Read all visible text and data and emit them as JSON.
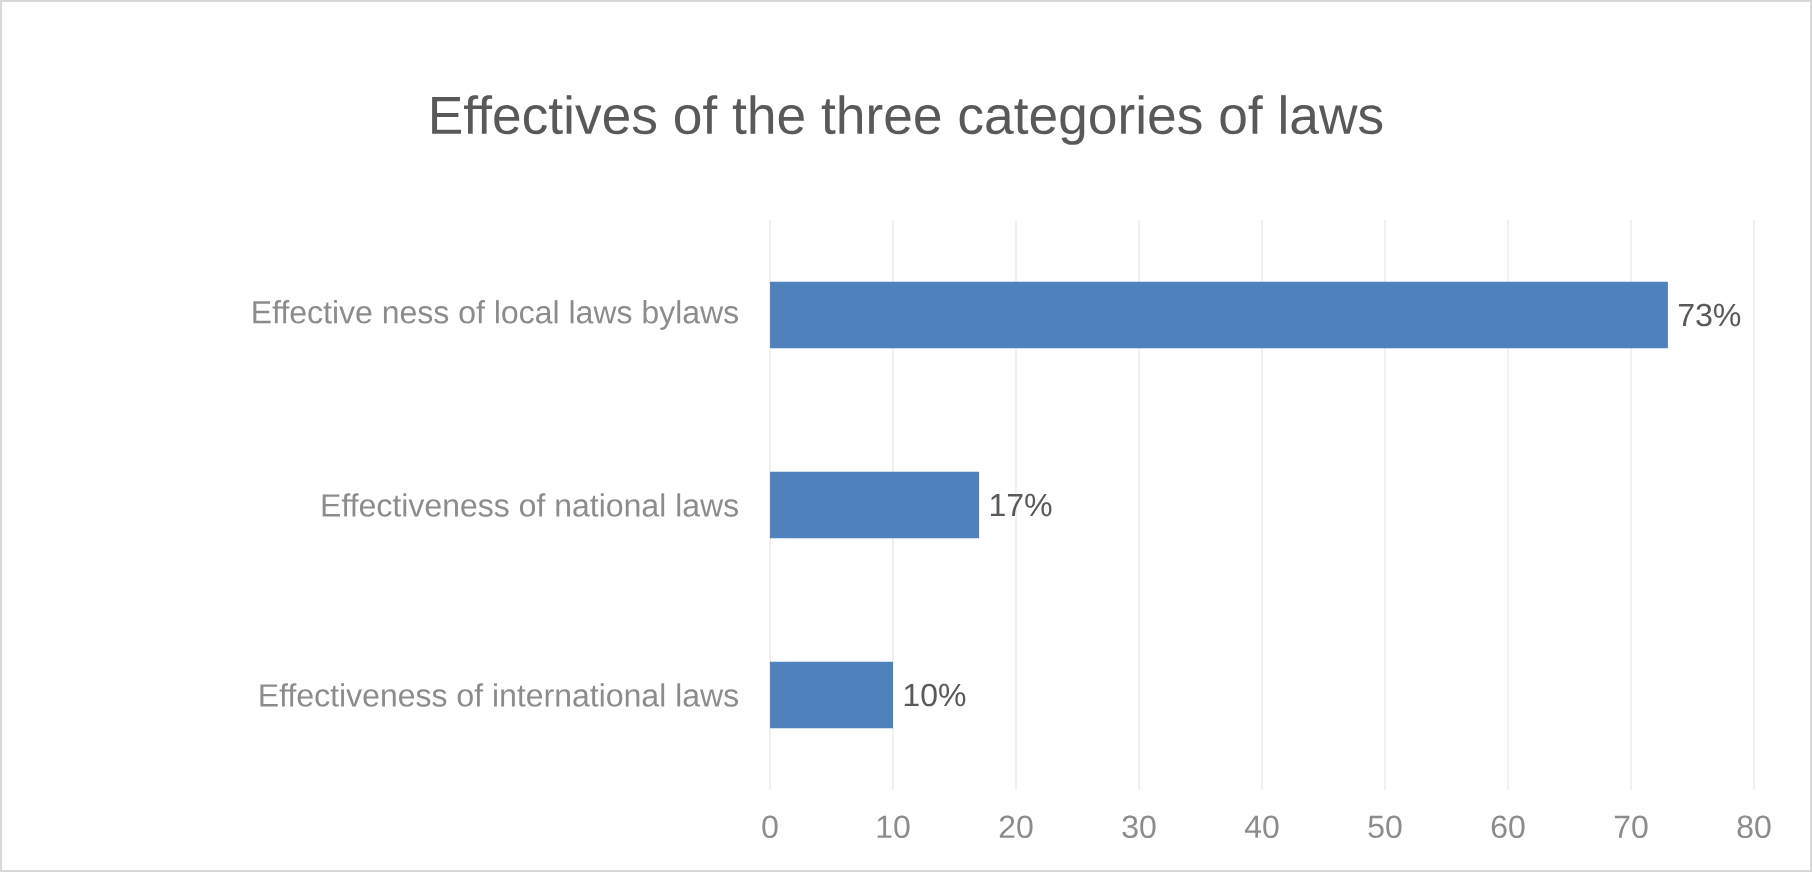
{
  "chart_data": {
    "type": "bar",
    "orientation": "horizontal",
    "title": "Effectives of the three categories of laws",
    "categories": [
      "Effective ness of local laws bylaws",
      "Effectiveness of national laws",
      "Effectiveness of international laws"
    ],
    "values": [
      73,
      17,
      10
    ],
    "value_labels": [
      "73%",
      "17%",
      "10%"
    ],
    "color": "#4f81bd",
    "xlim": [
      0,
      80
    ],
    "xticks": [
      0,
      10,
      20,
      30,
      40,
      50,
      60,
      70,
      80
    ],
    "grid": "x"
  }
}
